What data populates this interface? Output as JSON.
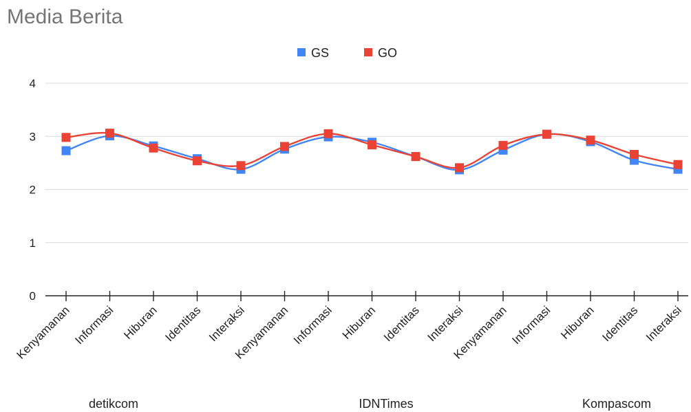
{
  "chart_data": {
    "type": "line",
    "title": "Media Berita",
    "categories": [
      "Kenyamanan",
      "Informasi",
      "Hiburan",
      "Identitas",
      "Interaksi",
      "Kenyamanan",
      "Informasi",
      "Hiburan",
      "Identitas",
      "Interaksi",
      "Kenyamanan",
      "Informasi",
      "Hiburan",
      "Identitas",
      "Interaksi"
    ],
    "groups": [
      "detikcom",
      "IDNTimes",
      "Kompascom"
    ],
    "series": [
      {
        "name": "GS",
        "color": "#4285f4",
        "values": [
          2.73,
          3.01,
          2.82,
          2.58,
          2.38,
          2.76,
          2.99,
          2.89,
          2.62,
          2.37,
          2.74,
          3.04,
          2.9,
          2.55,
          2.38
        ]
      },
      {
        "name": "GO",
        "color": "#ea4335",
        "values": [
          2.98,
          3.06,
          2.78,
          2.54,
          2.45,
          2.81,
          3.05,
          2.84,
          2.62,
          2.41,
          2.83,
          3.04,
          2.93,
          2.66,
          2.47
        ]
      }
    ],
    "ylim": [
      0,
      4
    ],
    "yticks": [
      0,
      1,
      2,
      3,
      4
    ],
    "grid": true,
    "legend": "top-center",
    "smooth": true
  }
}
